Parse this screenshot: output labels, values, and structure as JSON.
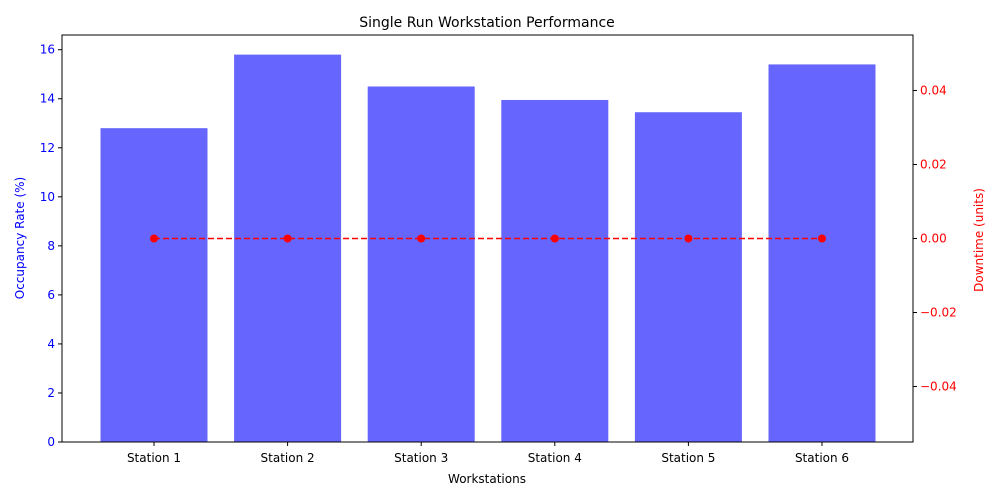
{
  "chart_data": {
    "type": "bar",
    "title": "Single Run Workstation Performance",
    "xlabel": "Workstations",
    "categories": [
      "Station 1",
      "Station 2",
      "Station 3",
      "Station 4",
      "Station 5",
      "Station 6"
    ],
    "series": [
      {
        "name": "Occupancy Rate (%)",
        "type": "bar",
        "axis": "left",
        "color": "#6666ff",
        "values": [
          12.8,
          15.8,
          14.5,
          13.95,
          13.45,
          15.4
        ]
      },
      {
        "name": "Downtime (units)",
        "type": "line",
        "axis": "right",
        "color": "#ff0000",
        "line_style": "dashed",
        "marker": "circle",
        "values": [
          0,
          0,
          0,
          0,
          0,
          0
        ]
      }
    ],
    "y_left": {
      "label": "Occupancy Rate (%)",
      "color": "#0000ff",
      "ylim": [
        0,
        16.6
      ],
      "ticks": [
        0,
        2,
        4,
        6,
        8,
        10,
        12,
        14,
        16
      ]
    },
    "y_right": {
      "label": "Downtime (units)",
      "color": "#ff0000",
      "ylim": [
        -0.055,
        0.055
      ],
      "ticks": [
        -0.04,
        -0.02,
        0.0,
        0.02,
        0.04
      ],
      "tick_labels": [
        "−0.04",
        "−0.02",
        "0.00",
        "0.02",
        "0.04"
      ]
    },
    "grid": false,
    "legend": false
  }
}
